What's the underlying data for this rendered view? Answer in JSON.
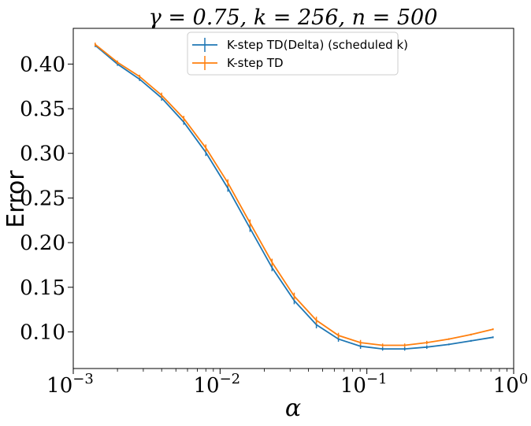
{
  "chart_data": {
    "type": "line",
    "title": "γ = 0.75, k = 256, n = 500",
    "xlabel": "α",
    "ylabel": "Error",
    "xscale": "log",
    "xlim": [
      0.001,
      1
    ],
    "ylim": [
      0.059,
      0.44
    ],
    "x_tick_labels": [
      {
        "value": 0.001,
        "base": "10",
        "exp": "−3"
      },
      {
        "value": 0.01,
        "base": "10",
        "exp": "−2"
      },
      {
        "value": 0.1,
        "base": "10",
        "exp": "−1"
      },
      {
        "value": 1,
        "base": "10",
        "exp": "0"
      }
    ],
    "y_ticks": [
      0.1,
      0.15,
      0.2,
      0.25,
      0.3,
      0.35,
      0.4
    ],
    "y_tick_labels": [
      "0.10",
      "0.15",
      "0.20",
      "0.25",
      "0.30",
      "0.35",
      "0.40"
    ],
    "grid": false,
    "legend_position": "top-center",
    "x": [
      0.00141,
      0.002,
      0.00283,
      0.004,
      0.00566,
      0.008,
      0.0113,
      0.016,
      0.0226,
      0.032,
      0.0453,
      0.064,
      0.0905,
      0.128,
      0.181,
      0.256,
      0.362,
      0.512,
      0.724
    ],
    "series": [
      {
        "name": "K-step TD(Delta) (scheduled k)",
        "color": "#1f77b4",
        "values": [
          0.421,
          0.4,
          0.383,
          0.362,
          0.335,
          0.301,
          0.261,
          0.216,
          0.172,
          0.135,
          0.108,
          0.092,
          0.084,
          0.081,
          0.081,
          0.083,
          0.086,
          0.09,
          0.094
        ],
        "errors": [
          0.002,
          0.002,
          0.002,
          0.003,
          0.003,
          0.004,
          0.004,
          0.004,
          0.004,
          0.004,
          0.004,
          0.003,
          0.003,
          0.002,
          0.002,
          0.002,
          0.001,
          0.001,
          0.001
        ]
      },
      {
        "name": "K-step TD",
        "color": "#ff7f0e",
        "values": [
          0.422,
          0.402,
          0.386,
          0.365,
          0.339,
          0.306,
          0.267,
          0.222,
          0.178,
          0.14,
          0.113,
          0.096,
          0.088,
          0.085,
          0.085,
          0.088,
          0.092,
          0.097,
          0.103
        ],
        "errors": [
          0.002,
          0.002,
          0.002,
          0.003,
          0.003,
          0.004,
          0.004,
          0.004,
          0.004,
          0.004,
          0.004,
          0.003,
          0.003,
          0.002,
          0.002,
          0.002,
          0.001,
          0.001,
          0.001
        ]
      }
    ]
  }
}
